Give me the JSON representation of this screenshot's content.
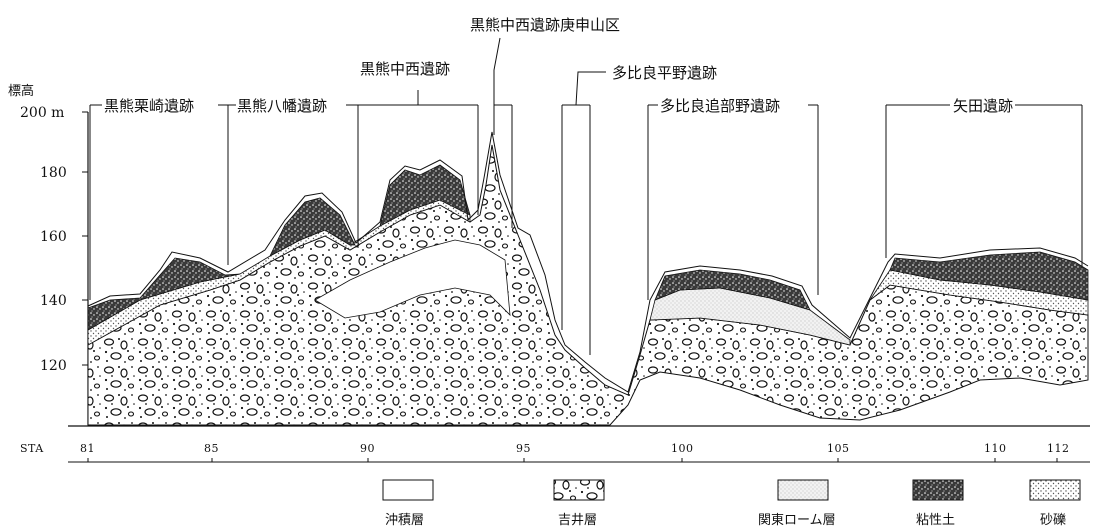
{
  "axis": {
    "y_title": "標高",
    "y_ticks": [
      "200 m",
      "180",
      "160",
      "140",
      "120"
    ],
    "x_title": "STA",
    "x_ticks": [
      "81",
      "85",
      "90",
      "95",
      "100",
      "105",
      "110",
      "112"
    ]
  },
  "sites": [
    "黒熊栗崎遺跡",
    "黒熊八幡遺跡",
    "黒熊中西遺跡",
    "黒熊中西遺跡庚申山区",
    "多比良平野遺跡",
    "多比良追部野遺跡",
    "矢田遺跡"
  ],
  "legend": [
    {
      "label": "沖積層"
    },
    {
      "label": "吉井層"
    },
    {
      "label": "関東ローム層"
    },
    {
      "label": "粘性土"
    },
    {
      "label": "砂礫"
    }
  ]
}
